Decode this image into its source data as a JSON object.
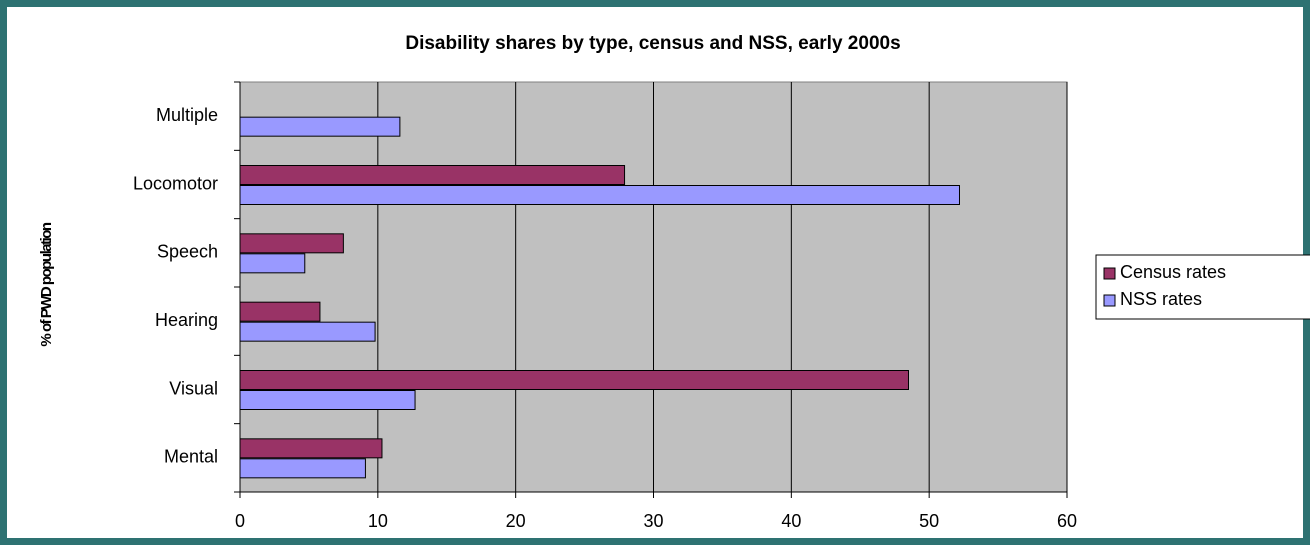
{
  "chart_data": {
    "type": "bar",
    "orientation": "horizontal",
    "title": "Disability shares by type, census and NSS, early 2000s",
    "y_label": "% of PWD population",
    "categories": [
      "Mental",
      "Visual",
      "Hearing",
      "Speech",
      "Locomotor",
      "Multiple"
    ],
    "series": [
      {
        "name": "Census rates",
        "color": "#993366",
        "values": [
          10.3,
          48.5,
          5.8,
          7.5,
          27.9,
          null
        ]
      },
      {
        "name": "NSS rates",
        "color": "#9999ff",
        "values": [
          9.1,
          12.7,
          9.8,
          4.7,
          52.2,
          11.6
        ]
      }
    ],
    "xlim": [
      0,
      60
    ],
    "xticks": [
      0,
      10,
      20,
      30,
      40,
      50,
      60
    ],
    "grid": true,
    "legend": "right",
    "plot_background": "#c0c0c0"
  }
}
